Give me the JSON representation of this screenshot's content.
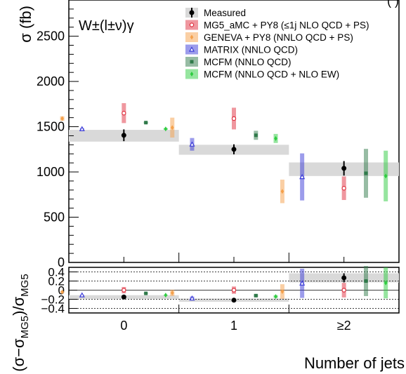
{
  "chart_data": [
    {
      "type": "scatter",
      "title": "",
      "process_label": "W±(l±ν)γ",
      "header_note": "(      )",
      "xlabel": "",
      "ylabel": "σ (fb)",
      "categories": [
        "0",
        "1",
        "≥2"
      ],
      "ylim": [
        0,
        2900
      ],
      "yticks": [
        0,
        500,
        1000,
        1500,
        2000,
        2500
      ],
      "grid": false,
      "legend_position": "top-right",
      "series": [
        {
          "name": "Measured",
          "color": "#000000",
          "marker": "circle-filled",
          "values": [
            1405,
            1250,
            1040
          ],
          "errors": [
            65,
            55,
            80
          ],
          "band": {
            "center": [
              1400,
              1245,
              1030
            ],
            "half": [
              65,
              55,
              75
            ],
            "color": "#d9d9d9"
          }
        },
        {
          "name": "MG5_aMC + PY8 (≤1j NLO QCD + PS)",
          "color": "#e0303f",
          "marker": "circle-open",
          "values": [
            1650,
            1590,
            820
          ],
          "errors": [
            110,
            120,
            130
          ]
        },
        {
          "name": "GENEVA + PY8 (NNLO QCD + PS)",
          "color": "#f5a04a",
          "marker": "diamond",
          "values": [
            1590,
            1490,
            785
          ],
          "errors": [
            25,
            110,
            130
          ]
        },
        {
          "name": "MATRIX (NNLO QCD)",
          "color": "#3a3ad8",
          "marker": "triangle-open",
          "values": [
            1475,
            1305,
            945
          ],
          "errors": [
            10,
            70,
            260
          ]
        },
        {
          "name": "MCFM (NNLO QCD)",
          "color": "#2f7a4a",
          "marker": "square",
          "values": [
            1545,
            1405,
            985
          ],
          "errors": [
            10,
            50,
            270
          ]
        },
        {
          "name": "MCFM (NNLO QCD + NLO EW)",
          "color": "#2ecc40",
          "marker": "diamond",
          "values": [
            1475,
            1370,
            955
          ],
          "errors": [
            10,
            50,
            280
          ]
        }
      ]
    },
    {
      "type": "scatter",
      "title": "",
      "xlabel": "Number of jets",
      "ylabel": "(σ−σMG5)/σMG5",
      "ylabel_main": "(σ−σ",
      "ylabel_sub1": "MG5",
      "ylabel_mid": ")/σ",
      "ylabel_sub2": "MG5",
      "categories": [
        "0",
        "1",
        "≥2"
      ],
      "ylim": [
        -0.5,
        0.5
      ],
      "yticks": [
        -0.4,
        -0.2,
        0,
        0.2,
        0.4
      ],
      "ytick_labels": [
        "−0.4",
        "−0.2",
        "0",
        "0.2",
        "0.4"
      ],
      "reference_lines": [
        -0.4,
        -0.2,
        0,
        0.2,
        0.4
      ],
      "grid": false,
      "series": [
        {
          "name": "Measured",
          "values": [
            -0.15,
            -0.22,
            0.27
          ],
          "errors": [
            0.04,
            0.035,
            0.1
          ],
          "band": {
            "center": [
              -0.15,
              -0.22,
              0.27
            ],
            "half": [
              0.04,
              0.035,
              0.1
            ]
          }
        },
        {
          "name": "MG5_aMC + PY8 (≤1j NLO QCD + PS)",
          "values": [
            0.0,
            0.0,
            0.0
          ],
          "errors": [
            0.07,
            0.08,
            0.16
          ]
        },
        {
          "name": "GENEVA + PY8 (NNLO QCD + PS)",
          "values": [
            -0.04,
            -0.06,
            -0.03
          ],
          "errors": [
            0.02,
            0.07,
            0.16
          ]
        },
        {
          "name": "MATRIX (NNLO QCD)",
          "values": [
            -0.11,
            -0.18,
            0.15
          ],
          "errors": [
            0.01,
            0.04,
            0.32
          ]
        },
        {
          "name": "MCFM (NNLO QCD)",
          "values": [
            -0.07,
            -0.12,
            0.2
          ],
          "errors": [
            0.01,
            0.03,
            0.33
          ]
        },
        {
          "name": "MCFM (NNLO QCD + NLO EW)",
          "values": [
            -0.11,
            -0.14,
            0.16
          ],
          "errors": [
            0.01,
            0.03,
            0.34
          ]
        }
      ]
    }
  ]
}
